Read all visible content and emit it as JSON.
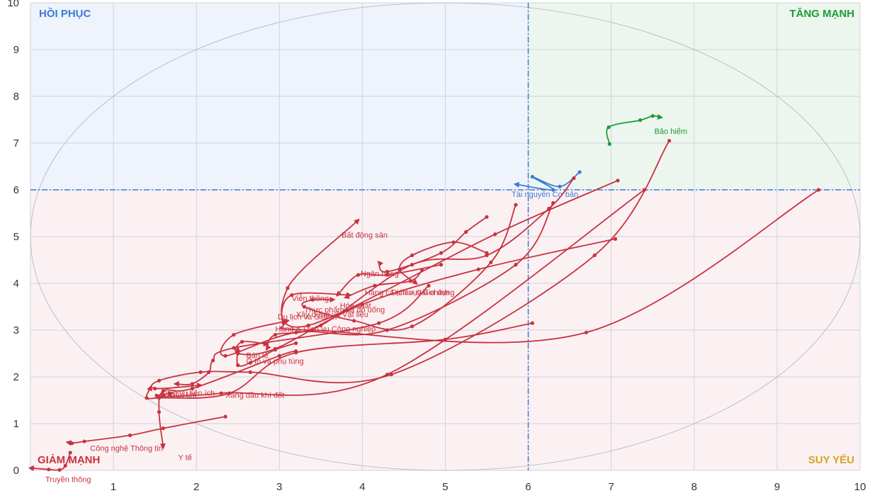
{
  "chart_data": {
    "type": "scatter",
    "xlim": [
      0,
      10
    ],
    "ylim": [
      0,
      10
    ],
    "xticks": [
      "1",
      "2",
      "3",
      "4",
      "5",
      "6",
      "7",
      "8",
      "9",
      "10"
    ],
    "yticks": [
      "0",
      "1",
      "2",
      "3",
      "4",
      "5",
      "6",
      "7",
      "8",
      "9",
      "10"
    ],
    "grid": true,
    "divider": {
      "x": 6,
      "y": 6
    },
    "quadrants": [
      {
        "key": "tl",
        "label": "HỒI PHỤC",
        "color": "#3b7bd8",
        "fill": "#eef3fc"
      },
      {
        "key": "tr",
        "label": "TĂNG MẠNH",
        "color": "#1e9b36",
        "fill": "#edf6ee"
      },
      {
        "key": "bl",
        "label": "GIẢM MẠNH",
        "color": "#c8323f",
        "fill": "#fbf1f3"
      },
      {
        "key": "br",
        "label": "SUY YẾU",
        "color": "#d9a21e",
        "fill": "#fbf1f3"
      }
    ],
    "series": [
      {
        "name": "Bảo hiểm",
        "color": "#1e9b36",
        "points": [
          [
            6.98,
            6.98
          ],
          [
            6.97,
            7.34
          ],
          [
            7.35,
            7.49
          ],
          [
            7.5,
            7.58
          ],
          [
            7.6,
            7.55
          ]
        ],
        "label_at": [
          7.52,
          7.2
        ]
      },
      {
        "name": "Tài nguyên Cơ bản",
        "color": "#3b7bd8",
        "points": [
          [
            6.62,
            6.38
          ],
          [
            6.38,
            6.07
          ],
          [
            6.05,
            6.28
          ],
          [
            6.3,
            6.0
          ],
          [
            5.85,
            6.12
          ]
        ],
        "label_at": [
          5.8,
          5.85
        ]
      },
      {
        "name": "Bất động sản",
        "color": "#c8323f",
        "points": [
          [
            7.08,
            6.2
          ],
          [
            5.6,
            5.05
          ],
          [
            3.35,
            3.1
          ],
          [
            3.1,
            3.9
          ],
          [
            3.95,
            5.35
          ]
        ],
        "label_at": [
          3.75,
          4.98
        ]
      },
      {
        "name": "Ngân hàng",
        "color": "#c8323f",
        "points": [
          [
            5.5,
            5.42
          ],
          [
            5.25,
            5.1
          ],
          [
            4.95,
            4.65
          ],
          [
            4.3,
            4.25
          ],
          [
            4.2,
            4.45
          ]
        ],
        "label_at": [
          3.98,
          4.15
        ]
      },
      {
        "name": "Hàng cá nhân & Gia dụng",
        "color": "#c8323f",
        "points": [
          [
            5.5,
            4.65
          ],
          [
            5.1,
            4.88
          ],
          [
            4.6,
            4.6
          ],
          [
            4.45,
            4.3
          ],
          [
            4.65,
            4.0
          ]
        ],
        "label_at": [
          4.03,
          3.75
        ]
      },
      {
        "name": "Dịch vụ tài chính",
        "color": "#c8323f",
        "points": [
          [
            4.95,
            4.4
          ],
          [
            4.3,
            4.18
          ],
          [
            3.95,
            4.18
          ],
          [
            3.7,
            3.75
          ]
        ],
        "label_at": [
          4.35,
          3.75
        ]
      },
      {
        "name": "Viễn thông",
        "color": "#c8323f",
        "points": [
          [
            9.5,
            6.0
          ],
          [
            6.7,
            2.95
          ],
          [
            3.4,
            3.0
          ],
          [
            3.05,
            3.15
          ],
          [
            3.15,
            3.75
          ],
          [
            3.85,
            3.75
          ]
        ],
        "label_at": [
          3.15,
          3.62
        ]
      },
      {
        "name": "Hóa chất",
        "color": "#c8323f",
        "points": [
          [
            4.72,
            4.28
          ],
          [
            4.58,
            4.05
          ],
          [
            4.15,
            3.95
          ],
          [
            3.8,
            3.7
          ]
        ],
        "label_at": [
          3.73,
          3.47
        ]
      },
      {
        "name": "Thực phẩm và đồ uống",
        "color": "#c8323f",
        "points": [
          [
            5.85,
            5.68
          ],
          [
            5.55,
            4.45
          ],
          [
            4.6,
            3.08
          ],
          [
            3.9,
            3.2
          ],
          [
            3.3,
            3.5
          ],
          [
            3.4,
            3.65
          ],
          [
            3.65,
            3.65
          ]
        ],
        "label_at": [
          3.3,
          3.38
        ]
      },
      {
        "name": "Xây dựng và Vật liệu",
        "color": "#c8323f",
        "points": [
          [
            6.55,
            6.25
          ],
          [
            6.25,
            5.6
          ],
          [
            5.5,
            4.6
          ],
          [
            4.6,
            4.4
          ],
          [
            3.5,
            3.1
          ],
          [
            2.95,
            2.9
          ],
          [
            2.85,
            2.6
          ]
        ],
        "label_at": [
          3.2,
          3.28
        ]
      },
      {
        "name": "Du lịch và Giải trí",
        "color": "#c8323f",
        "points": [
          [
            6.3,
            5.72
          ],
          [
            5.85,
            4.4
          ],
          [
            4.3,
            3.0
          ],
          [
            3.2,
            2.95
          ],
          [
            2.35,
            2.45
          ],
          [
            2.45,
            2.9
          ],
          [
            3.1,
            3.2
          ]
        ],
        "label_at": [
          2.98,
          3.23
        ]
      },
      {
        "name": "Hàng & Dịch vụ Công nghiệp",
        "color": "#c8323f",
        "points": [
          [
            7.05,
            4.95
          ],
          [
            5.4,
            4.3
          ],
          [
            4.0,
            3.55
          ],
          [
            2.95,
            2.6
          ],
          [
            2.5,
            2.5
          ],
          [
            2.55,
            2.75
          ],
          [
            2.85,
            2.7
          ]
        ],
        "label_at": [
          2.95,
          2.97
        ]
      },
      {
        "name": "Ô tô và phụ tùng",
        "color": "#c8323f",
        "points": [
          [
            3.2,
            2.72
          ],
          [
            2.95,
            2.58
          ],
          [
            2.65,
            2.3
          ],
          [
            2.5,
            2.25
          ],
          [
            2.5,
            2.6
          ]
        ],
        "label_at": [
          2.6,
          2.28
        ]
      },
      {
        "name": "Bán lẻ",
        "color": "#c8323f",
        "points": [
          [
            7.7,
            7.05
          ],
          [
            6.8,
            4.6
          ],
          [
            4.35,
            2.05
          ],
          [
            2.65,
            2.1
          ],
          [
            2.05,
            2.1
          ],
          [
            1.55,
            1.92
          ],
          [
            1.5,
            1.75
          ],
          [
            2.05,
            1.82
          ]
        ],
        "label_at": [
          2.6,
          2.4
        ]
      },
      {
        "name": "Dịch vụ tiện ích",
        "color": "#c8323f",
        "points": [
          [
            4.8,
            3.95
          ],
          [
            4.2,
            3.15
          ],
          [
            2.45,
            2.62
          ],
          [
            2.2,
            2.35
          ],
          [
            2.15,
            2.1
          ],
          [
            1.95,
            1.85
          ],
          [
            1.75,
            1.85
          ]
        ],
        "label_at": [
          1.58,
          1.6
        ]
      },
      {
        "name": "Dầu khí",
        "color": "#c8323f",
        "points": [
          [
            6.05,
            3.15
          ],
          [
            5.0,
            2.8
          ],
          [
            3.2,
            2.52
          ],
          [
            2.4,
            1.65
          ],
          [
            1.55,
            1.55
          ],
          [
            1.4,
            1.55
          ],
          [
            1.45,
            1.78
          ]
        ],
        "label_at": [
          1.68,
          1.55
        ]
      },
      {
        "name": "Xăng dầu khí đốt",
        "color": "#c8323f",
        "points": [
          [
            7.4,
            6.0
          ],
          [
            4.3,
            2.05
          ],
          [
            2.3,
            1.65
          ],
          [
            1.6,
            1.58
          ],
          [
            1.52,
            1.6
          ],
          [
            1.6,
            1.62
          ],
          [
            1.7,
            1.65
          ]
        ],
        "label_at": [
          2.35,
          1.55
        ]
      },
      {
        "name": "Y tế",
        "color": "#c8323f",
        "points": [
          [
            3.2,
            2.55
          ],
          [
            3.0,
            2.45
          ],
          [
            1.95,
            1.75
          ],
          [
            1.6,
            1.7
          ],
          [
            1.55,
            1.25
          ],
          [
            1.6,
            0.5
          ]
        ],
        "label_at": [
          1.78,
          0.22
        ]
      },
      {
        "name": "Công nghệ Thông tin",
        "color": "#c8323f",
        "points": [
          [
            2.35,
            1.15
          ],
          [
            1.6,
            0.9
          ],
          [
            1.2,
            0.75
          ],
          [
            0.65,
            0.62
          ],
          [
            0.5,
            0.58
          ],
          [
            0.45,
            0.6
          ]
        ],
        "label_at": [
          0.72,
          0.42
        ]
      },
      {
        "name": "Truyền thông",
        "color": "#c8323f",
        "points": [
          [
            0.48,
            0.38
          ],
          [
            0.42,
            0.1
          ],
          [
            0.35,
            0.01
          ],
          [
            0.22,
            0.02
          ],
          [
            0.0,
            0.05
          ]
        ],
        "label_at": [
          0.18,
          -0.25
        ]
      }
    ]
  }
}
